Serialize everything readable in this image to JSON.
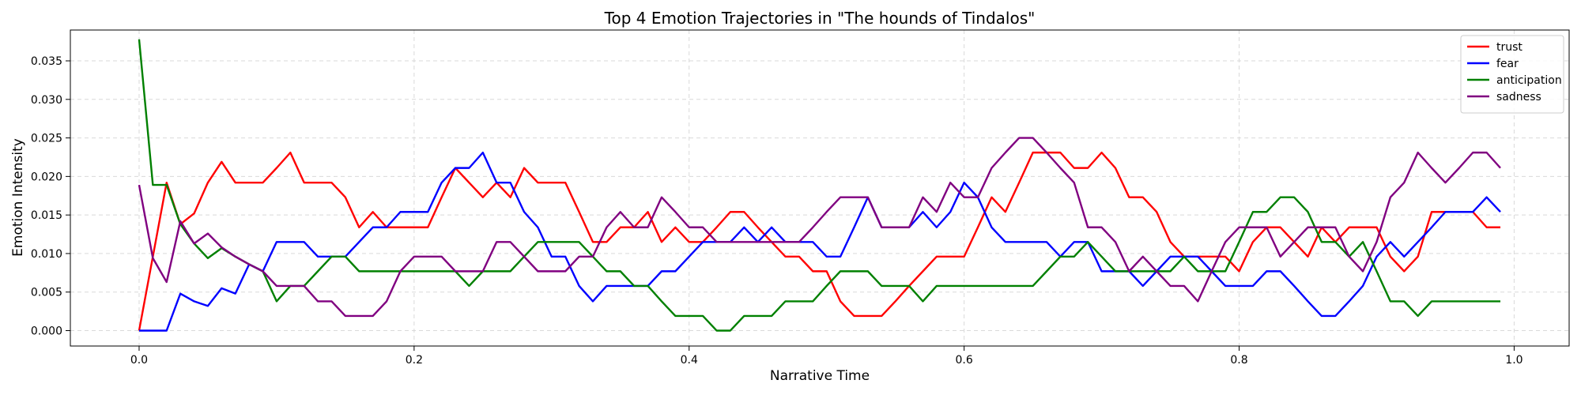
{
  "chart_data": {
    "type": "line",
    "title": "Top 4 Emotion Trajectories in \"The hounds of Tindalos\"",
    "xlabel": "Narrative Time",
    "ylabel": "Emotion Intensity",
    "xlim": [
      -0.05,
      1.04
    ],
    "ylim": [
      -0.002,
      0.039
    ],
    "xticks": [
      0.0,
      0.2,
      0.4,
      0.6,
      0.8,
      1.0
    ],
    "xtick_labels": [
      "0.0",
      "0.2",
      "0.4",
      "0.6",
      "0.8",
      "1.0"
    ],
    "yticks": [
      0.0,
      0.005,
      0.01,
      0.015,
      0.02,
      0.025,
      0.03,
      0.035
    ],
    "ytick_labels": [
      "0.000",
      "0.005",
      "0.010",
      "0.015",
      "0.020",
      "0.025",
      "0.030",
      "0.035"
    ],
    "grid": true,
    "legend_position": "top-right",
    "x_start": 0.0,
    "x_step": 0.01,
    "series": [
      {
        "name": "trust",
        "color": "#ff0000",
        "values": [
          0.0,
          0.0096,
          0.0192,
          0.0138,
          0.0152,
          0.0192,
          0.0219,
          0.0192,
          0.0192,
          0.0192,
          0.0211,
          0.0231,
          0.0192,
          0.0192,
          0.0192,
          0.0173,
          0.0134,
          0.0154,
          0.0134,
          0.0134,
          0.0134,
          0.0134,
          0.0173,
          0.0211,
          0.0192,
          0.0173,
          0.0192,
          0.0173,
          0.0211,
          0.0192,
          0.0192,
          0.0192,
          0.0154,
          0.0115,
          0.0115,
          0.0134,
          0.0134,
          0.0154,
          0.0115,
          0.0134,
          0.0115,
          0.0115,
          0.0134,
          0.0154,
          0.0154,
          0.0134,
          0.0115,
          0.0096,
          0.0096,
          0.0077,
          0.0077,
          0.0038,
          0.0019,
          0.0019,
          0.0019,
          0.0038,
          0.0058,
          0.0077,
          0.0096,
          0.0096,
          0.0096,
          0.0134,
          0.0173,
          0.0154,
          0.0192,
          0.0231,
          0.0231,
          0.0231,
          0.0211,
          0.0211,
          0.0231,
          0.0211,
          0.0173,
          0.0173,
          0.0154,
          0.0115,
          0.0096,
          0.0096,
          0.0096,
          0.0096,
          0.0077,
          0.0115,
          0.0134,
          0.0134,
          0.0115,
          0.0096,
          0.0134,
          0.0115,
          0.0134,
          0.0134,
          0.0134,
          0.0096,
          0.0077,
          0.0096,
          0.0154,
          0.0154,
          0.0154,
          0.0154,
          0.0134,
          0.0134
        ]
      },
      {
        "name": "fear",
        "color": "#0000ff",
        "values": [
          0.0,
          0.0,
          0.0,
          0.0048,
          0.0038,
          0.0032,
          0.0055,
          0.0048,
          0.0086,
          0.0077,
          0.0115,
          0.0115,
          0.0115,
          0.0096,
          0.0096,
          0.0096,
          0.0115,
          0.0134,
          0.0134,
          0.0154,
          0.0154,
          0.0154,
          0.0192,
          0.0211,
          0.0211,
          0.0231,
          0.0192,
          0.0192,
          0.0154,
          0.0134,
          0.0096,
          0.0096,
          0.0058,
          0.0038,
          0.0058,
          0.0058,
          0.0058,
          0.0058,
          0.0077,
          0.0077,
          0.0096,
          0.0115,
          0.0115,
          0.0115,
          0.0134,
          0.0115,
          0.0134,
          0.0115,
          0.0115,
          0.0115,
          0.0096,
          0.0096,
          0.0134,
          0.0173,
          0.0134,
          0.0134,
          0.0134,
          0.0154,
          0.0134,
          0.0154,
          0.0192,
          0.0173,
          0.0134,
          0.0115,
          0.0115,
          0.0115,
          0.0115,
          0.0096,
          0.0115,
          0.0115,
          0.0077,
          0.0077,
          0.0077,
          0.0058,
          0.0077,
          0.0096,
          0.0096,
          0.0096,
          0.0077,
          0.0058,
          0.0058,
          0.0058,
          0.0077,
          0.0077,
          0.0058,
          0.0038,
          0.0019,
          0.0019,
          0.0038,
          0.0058,
          0.0096,
          0.0115,
          0.0096,
          0.0115,
          0.0134,
          0.0154,
          0.0154,
          0.0154,
          0.0173,
          0.0154
        ]
      },
      {
        "name": "anticipation",
        "color": "#008000",
        "values": [
          0.0378,
          0.0189,
          0.0189,
          0.0138,
          0.0113,
          0.0094,
          0.0107,
          0.0096,
          0.0086,
          0.0077,
          0.0038,
          0.0058,
          0.0058,
          0.0077,
          0.0096,
          0.0096,
          0.0077,
          0.0077,
          0.0077,
          0.0077,
          0.0077,
          0.0077,
          0.0077,
          0.0077,
          0.0058,
          0.0077,
          0.0077,
          0.0077,
          0.0096,
          0.0115,
          0.0115,
          0.0115,
          0.0115,
          0.0096,
          0.0077,
          0.0077,
          0.0058,
          0.0058,
          0.0038,
          0.0019,
          0.0019,
          0.0019,
          0.0,
          0.0,
          0.0019,
          0.0019,
          0.0019,
          0.0038,
          0.0038,
          0.0038,
          0.0058,
          0.0077,
          0.0077,
          0.0077,
          0.0058,
          0.0058,
          0.0058,
          0.0038,
          0.0058,
          0.0058,
          0.0058,
          0.0058,
          0.0058,
          0.0058,
          0.0058,
          0.0058,
          0.0077,
          0.0096,
          0.0096,
          0.0115,
          0.0096,
          0.0077,
          0.0077,
          0.0077,
          0.0077,
          0.0077,
          0.0096,
          0.0077,
          0.0077,
          0.0077,
          0.0115,
          0.0154,
          0.0154,
          0.0173,
          0.0173,
          0.0154,
          0.0115,
          0.0115,
          0.0096,
          0.0115,
          0.0077,
          0.0038,
          0.0038,
          0.0019,
          0.0038,
          0.0038,
          0.0038,
          0.0038,
          0.0038,
          0.0038
        ]
      },
      {
        "name": "sadness",
        "color": "#800080",
        "values": [
          0.0189,
          0.0094,
          0.0063,
          0.0142,
          0.0113,
          0.0126,
          0.0108,
          0.0096,
          0.0086,
          0.0077,
          0.0058,
          0.0058,
          0.0058,
          0.0038,
          0.0038,
          0.0019,
          0.0019,
          0.0019,
          0.0038,
          0.0077,
          0.0096,
          0.0096,
          0.0096,
          0.0077,
          0.0077,
          0.0077,
          0.0115,
          0.0115,
          0.0096,
          0.0077,
          0.0077,
          0.0077,
          0.0096,
          0.0096,
          0.0134,
          0.0154,
          0.0134,
          0.0134,
          0.0173,
          0.0154,
          0.0134,
          0.0134,
          0.0115,
          0.0115,
          0.0115,
          0.0115,
          0.0115,
          0.0115,
          0.0115,
          0.0134,
          0.0154,
          0.0173,
          0.0173,
          0.0173,
          0.0134,
          0.0134,
          0.0134,
          0.0173,
          0.0154,
          0.0192,
          0.0173,
          0.0173,
          0.0211,
          0.0231,
          0.025,
          0.025,
          0.0231,
          0.0211,
          0.0192,
          0.0134,
          0.0134,
          0.0115,
          0.0077,
          0.0096,
          0.0077,
          0.0058,
          0.0058,
          0.0038,
          0.0077,
          0.0115,
          0.0134,
          0.0134,
          0.0134,
          0.0096,
          0.0115,
          0.0134,
          0.0134,
          0.0134,
          0.0096,
          0.0077,
          0.0115,
          0.0173,
          0.0192,
          0.0231,
          0.0211,
          0.0192,
          0.0211,
          0.0231,
          0.0231,
          0.0211
        ]
      }
    ]
  }
}
